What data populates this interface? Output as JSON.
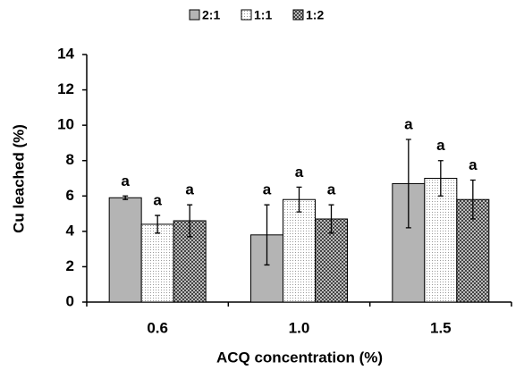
{
  "chart_data": {
    "type": "bar",
    "x_label": "ACQ concentration (%)",
    "y_label": "Cu leached (%)",
    "categories": [
      "0.6",
      "1.0",
      "1.5"
    ],
    "series": [
      {
        "name": "2:1",
        "color": "#b4b4b4",
        "pattern": "solid",
        "values": [
          5.9,
          3.8,
          6.7
        ],
        "errors": [
          0.1,
          1.7,
          2.5
        ],
        "annotations": [
          "a",
          "a",
          "a"
        ]
      },
      {
        "name": "1:1",
        "color": "#ffffff",
        "pattern": "dots",
        "values": [
          4.4,
          5.8,
          7.0
        ],
        "errors": [
          0.5,
          0.7,
          1.0
        ],
        "annotations": [
          "a",
          "a",
          "a"
        ]
      },
      {
        "name": "1:2",
        "color": "#555555",
        "pattern": "crosshatch",
        "values": [
          4.6,
          4.7,
          5.8
        ],
        "errors": [
          0.9,
          0.8,
          1.1
        ],
        "annotations": [
          "a",
          "a",
          "a"
        ]
      }
    ],
    "ylim": [
      0,
      14
    ],
    "yticks": [
      0,
      2,
      4,
      6,
      8,
      10,
      12,
      14
    ],
    "legend": "top"
  }
}
